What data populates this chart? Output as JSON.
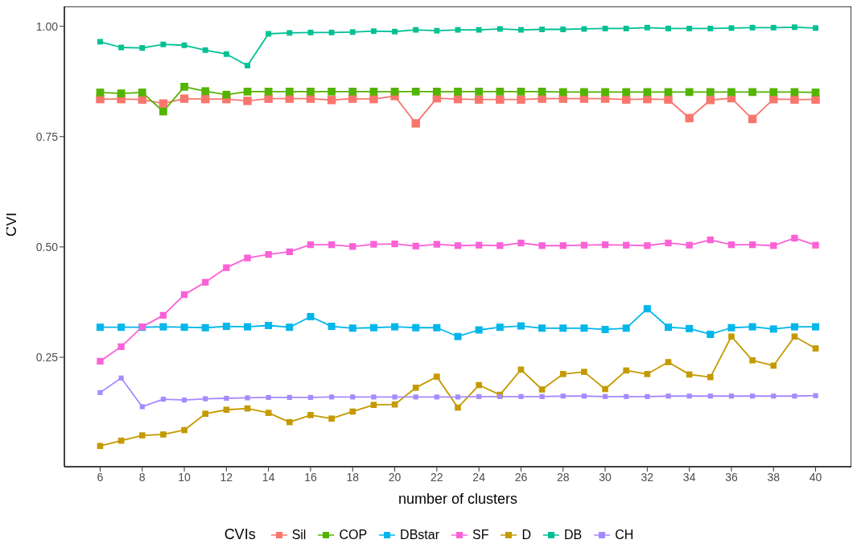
{
  "chart_data": {
    "type": "line",
    "xlabel": "number of clusters",
    "ylabel": "CVI",
    "legend_title": "CVIs",
    "legend": "bottom",
    "marker": "square",
    "line_style": "solid",
    "grid": false,
    "x": [
      6,
      7,
      8,
      9,
      10,
      11,
      12,
      13,
      14,
      15,
      16,
      17,
      18,
      19,
      20,
      21,
      22,
      23,
      24,
      25,
      26,
      27,
      28,
      29,
      30,
      31,
      32,
      33,
      34,
      35,
      36,
      37,
      38,
      39,
      40
    ],
    "xlim": [
      4.3,
      41.7
    ],
    "xticks": [
      6,
      8,
      10,
      12,
      14,
      16,
      18,
      20,
      22,
      24,
      26,
      28,
      30,
      32,
      34,
      36,
      38,
      40
    ],
    "ylim": [
      0.002,
      1.045
    ],
    "yticks": [
      {
        "value": 0.25,
        "label": "0.25"
      },
      {
        "value": 0.5,
        "label": "0.50"
      },
      {
        "value": 0.75,
        "label": "0.75"
      },
      {
        "value": 1,
        "label": "1.00"
      }
    ],
    "series": [
      {
        "name": "Sil",
        "color": "#f8766d",
        "values": [
          0.835,
          0.835,
          0.834,
          0.825,
          0.836,
          0.835,
          0.835,
          0.831,
          0.836,
          0.836,
          0.836,
          0.833,
          0.836,
          0.835,
          0.842,
          0.78,
          0.837,
          0.835,
          0.834,
          0.834,
          0.834,
          0.836,
          0.836,
          0.836,
          0.836,
          0.834,
          0.835,
          0.834,
          0.792,
          0.833,
          0.837,
          0.79,
          0.835,
          0.834,
          0.834
        ]
      },
      {
        "name": "COP",
        "color": "#53b400",
        "values": [
          0.85,
          0.848,
          0.85,
          0.807,
          0.863,
          0.853,
          0.845,
          0.852,
          0.852,
          0.852,
          0.852,
          0.852,
          0.852,
          0.852,
          0.852,
          0.852,
          0.852,
          0.852,
          0.852,
          0.852,
          0.852,
          0.852,
          0.851,
          0.851,
          0.851,
          0.851,
          0.851,
          0.851,
          0.851,
          0.851,
          0.851,
          0.851,
          0.851,
          0.851,
          0.85
        ]
      },
      {
        "name": "DBstar",
        "color": "#00b6eb",
        "values": [
          0.318,
          0.318,
          0.318,
          0.319,
          0.318,
          0.317,
          0.32,
          0.319,
          0.322,
          0.318,
          0.342,
          0.32,
          0.316,
          0.317,
          0.319,
          0.317,
          0.317,
          0.297,
          0.312,
          0.318,
          0.321,
          0.316,
          0.316,
          0.316,
          0.313,
          0.316,
          0.36,
          0.318,
          0.315,
          0.302,
          0.317,
          0.319,
          0.314,
          0.319,
          0.319
        ]
      },
      {
        "name": "SF",
        "color": "#fb61d7",
        "values": [
          0.241,
          0.274,
          0.319,
          0.345,
          0.392,
          0.42,
          0.453,
          0.475,
          0.483,
          0.489,
          0.505,
          0.505,
          0.501,
          0.506,
          0.507,
          0.502,
          0.506,
          0.503,
          0.504,
          0.503,
          0.509,
          0.503,
          0.503,
          0.504,
          0.505,
          0.504,
          0.503,
          0.509,
          0.504,
          0.516,
          0.505,
          0.505,
          0.503,
          0.52,
          0.504
        ]
      },
      {
        "name": "D",
        "color": "#c49a00",
        "values": [
          0.049,
          0.061,
          0.073,
          0.075,
          0.085,
          0.122,
          0.131,
          0.134,
          0.124,
          0.103,
          0.119,
          0.111,
          0.127,
          0.142,
          0.143,
          0.181,
          0.206,
          0.136,
          0.187,
          0.165,
          0.222,
          0.177,
          0.212,
          0.217,
          0.178,
          0.22,
          0.212,
          0.239,
          0.211,
          0.205,
          0.297,
          0.243,
          0.231,
          0.297,
          0.27
        ]
      },
      {
        "name": "DB",
        "color": "#00c094",
        "values": [
          0.965,
          0.952,
          0.951,
          0.959,
          0.957,
          0.946,
          0.937,
          0.911,
          0.983,
          0.985,
          0.986,
          0.986,
          0.987,
          0.989,
          0.988,
          0.992,
          0.99,
          0.992,
          0.992,
          0.994,
          0.992,
          0.993,
          0.993,
          0.994,
          0.995,
          0.995,
          0.997,
          0.995,
          0.995,
          0.995,
          0.996,
          0.997,
          0.997,
          0.998,
          0.996
        ]
      },
      {
        "name": "CH",
        "color": "#a58aff",
        "values": [
          0.17,
          0.203,
          0.138,
          0.155,
          0.153,
          0.156,
          0.157,
          0.158,
          0.159,
          0.159,
          0.159,
          0.16,
          0.16,
          0.16,
          0.16,
          0.16,
          0.16,
          0.16,
          0.161,
          0.161,
          0.161,
          0.161,
          0.162,
          0.162,
          0.161,
          0.161,
          0.161,
          0.162,
          0.162,
          0.162,
          0.162,
          0.162,
          0.162,
          0.162,
          0.163
        ]
      }
    ]
  }
}
